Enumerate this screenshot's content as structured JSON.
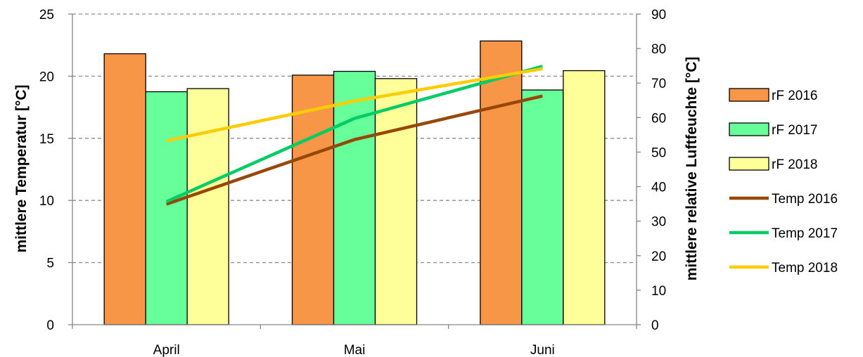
{
  "chart_data": {
    "type": "bar",
    "categories": [
      "April",
      "Mai",
      "Juni"
    ],
    "ylabel": "mittlere Temperatur [°C]",
    "y2label": "mittlere relative Luftfeuchte [°C]",
    "ylim": [
      0,
      25
    ],
    "y2lim": [
      0,
      90
    ],
    "yticks": [
      "0",
      "5",
      "10",
      "15",
      "20",
      "25"
    ],
    "y2ticks": [
      "0",
      "10",
      "20",
      "30",
      "40",
      "50",
      "60",
      "70",
      "80",
      "90"
    ],
    "grid": true,
    "legend_position": "right",
    "bar_series": [
      {
        "name": "rF 2016",
        "values": [
          78.5,
          72.3,
          82.2
        ],
        "color": "#F79646",
        "axis": "right"
      },
      {
        "name": "rF 2017",
        "values": [
          67.5,
          73.4,
          68.0
        ],
        "color": "#66FF99",
        "axis": "right"
      },
      {
        "name": "rF 2018",
        "values": [
          68.4,
          71.3,
          73.6
        ],
        "color": "#FFFF99",
        "axis": "right"
      }
    ],
    "line_series": [
      {
        "name": "Temp 2016",
        "values": [
          9.7,
          14.9,
          18.4
        ],
        "color": "#974706",
        "axis": "left"
      },
      {
        "name": "Temp 2017",
        "values": [
          9.9,
          16.6,
          20.8
        ],
        "color": "#00CC66",
        "axis": "left"
      },
      {
        "name": "Temp 2018",
        "values": [
          14.8,
          18.0,
          20.6
        ],
        "color": "#FFCC00",
        "axis": "left"
      }
    ]
  }
}
